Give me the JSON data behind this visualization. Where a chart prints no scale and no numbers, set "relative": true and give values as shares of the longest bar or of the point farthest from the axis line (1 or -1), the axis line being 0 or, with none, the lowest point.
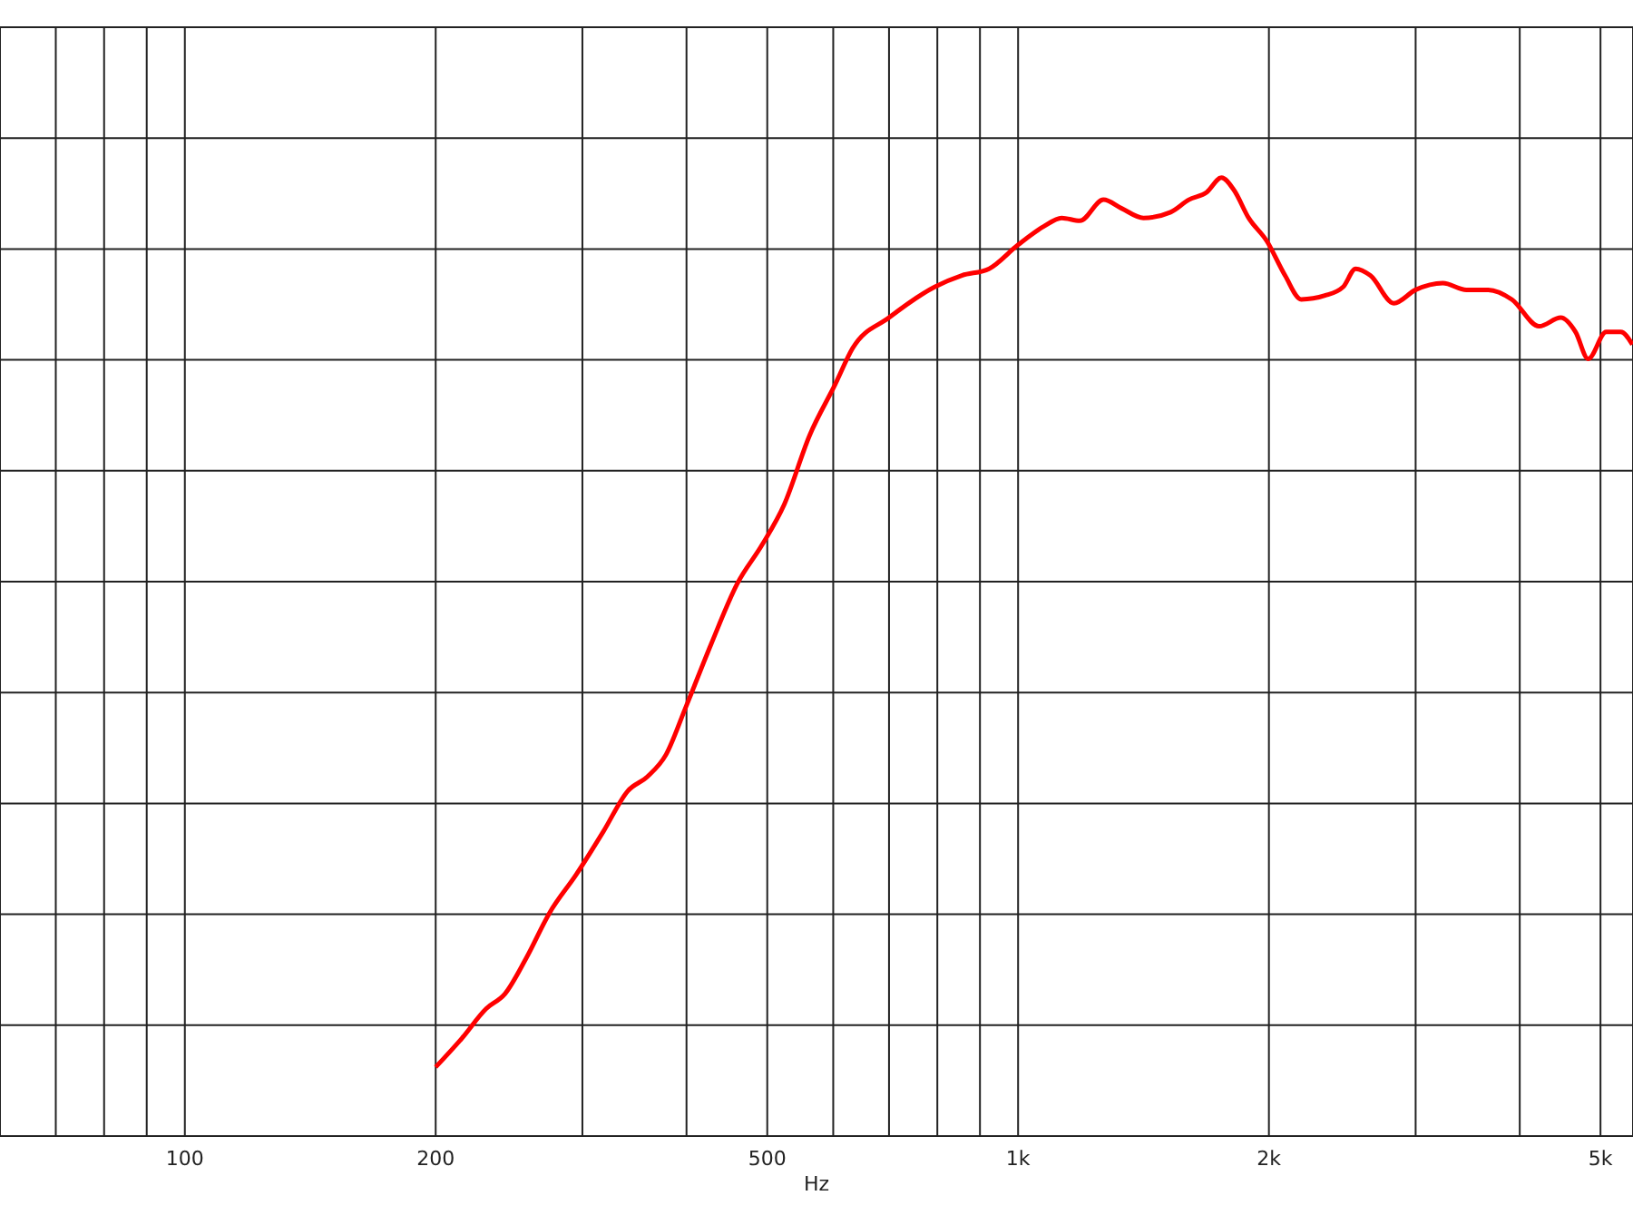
{
  "chart_data": {
    "type": "line",
    "xlabel": "Hz",
    "log": "x",
    "relative": true,
    "grid": true,
    "marker": "none",
    "line_style": "solid",
    "xlim": [
      60,
      5470
    ],
    "xticks": [
      {
        "value": 70,
        "label": null
      },
      {
        "value": 80,
        "label": null
      },
      {
        "value": 90,
        "label": null
      },
      100,
      200,
      {
        "value": 300,
        "label": null
      },
      {
        "value": 400,
        "label": null
      },
      500,
      {
        "value": 600,
        "label": null
      },
      {
        "value": 700,
        "label": null
      },
      {
        "value": 800,
        "label": null
      },
      {
        "value": 900,
        "label": null
      },
      {
        "value": 1000,
        "label": "1k"
      },
      {
        "value": 2000,
        "label": "2k"
      },
      {
        "value": 3000,
        "label": null
      },
      {
        "value": 4000,
        "label": null
      },
      {
        "value": 5000,
        "label": "5k"
      }
    ],
    "series": [
      {
        "color": "#ff0000",
        "x": [
          200,
          215,
          230,
          242,
          257,
          274,
          295,
          318,
          340,
          359,
          378,
          399,
          428,
          460,
          493,
          524,
          562,
          603,
          633,
          700,
          794,
          856,
          923,
          1000,
          1073,
          1128,
          1186,
          1266,
          1331,
          1414,
          1524,
          1603,
          1685,
          1754,
          1816,
          1891,
          1988,
          2091,
          2187,
          2335,
          2455,
          2542,
          2647,
          2825,
          3000,
          3234,
          3452,
          3667,
          3913,
          4220,
          4481,
          4667,
          4833,
          5080,
          5288,
          5460
        ],
        "values": [
          0.072,
          0.102,
          0.133,
          0.148,
          0.186,
          0.233,
          0.273,
          0.318,
          0.36,
          0.375,
          0.398,
          0.447,
          0.513,
          0.576,
          0.617,
          0.659,
          0.731,
          0.784,
          0.822,
          0.854,
          0.886,
          0.898,
          0.905,
          0.93,
          0.949,
          0.958,
          0.955,
          0.977,
          0.968,
          0.958,
          0.964,
          0.977,
          0.985,
          1,
          0.987,
          0.958,
          0.934,
          0.898,
          0.873,
          0.877,
          0.886,
          0.905,
          0.898,
          0.869,
          0.883,
          0.89,
          0.883,
          0.883,
          0.873,
          0.845,
          0.854,
          0.839,
          0.811,
          0.839,
          0.839,
          0.826
        ]
      }
    ]
  }
}
